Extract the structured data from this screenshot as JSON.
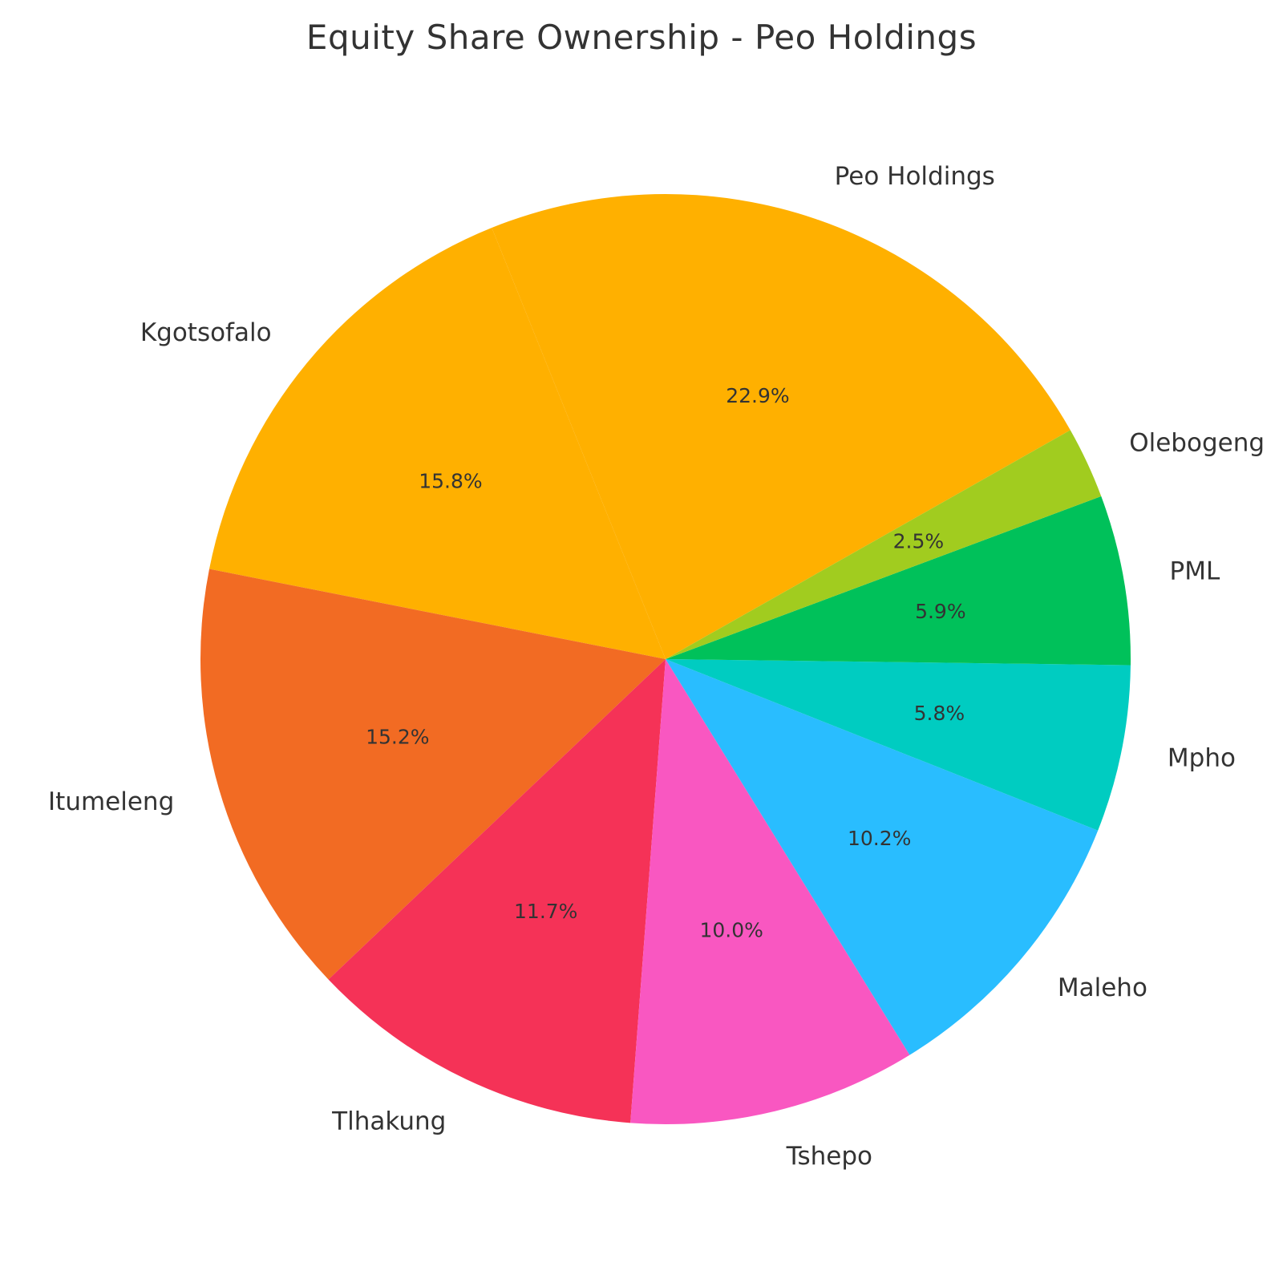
{
  "chart_data": {
    "type": "pie",
    "title": "Equity Share Ownership - Peo Holdings",
    "start_angle_deg": 29.5,
    "direction": "counterclockwise",
    "slices": [
      {
        "label": "Peo Holdings",
        "value": 22.9,
        "pct_text": "22.9%",
        "color": "#FFB000"
      },
      {
        "label": "Kgotsofalo",
        "value": 15.8,
        "pct_text": "15.8%",
        "color": "#FFB000"
      },
      {
        "label": "Itumeleng",
        "value": 15.2,
        "pct_text": "15.2%",
        "color": "#F26B23"
      },
      {
        "label": "Tlhakung",
        "value": 11.7,
        "pct_text": "11.7%",
        "color": "#F53257"
      },
      {
        "label": "Tshepo",
        "value": 10.0,
        "pct_text": "10.0%",
        "color": "#F957C1"
      },
      {
        "label": "Maleho",
        "value": 10.2,
        "pct_text": "10.2%",
        "color": "#29BDFF"
      },
      {
        "label": "Mpho",
        "value": 5.8,
        "pct_text": "5.8%",
        "color": "#00CCC1"
      },
      {
        "label": "PML",
        "value": 5.9,
        "pct_text": "5.9%",
        "color": "#00C15A"
      },
      {
        "label": "Olebogeng",
        "value": 2.5,
        "pct_text": "2.5%",
        "color": "#A1CC1F"
      }
    ]
  }
}
